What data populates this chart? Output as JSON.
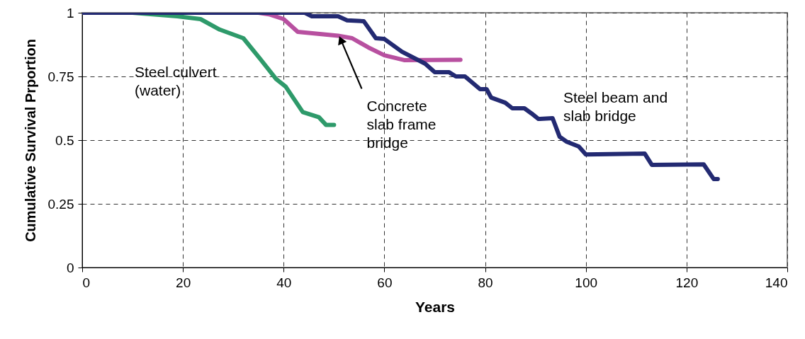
{
  "chart_data": {
    "type": "line",
    "xlabel": "Years",
    "ylabel": "Cumulative Survival Prportion",
    "xlim": [
      0,
      140
    ],
    "xticks": [
      0,
      20,
      40,
      60,
      80,
      100,
      120,
      140
    ],
    "ylim": [
      0,
      1
    ],
    "yticks": [
      0,
      0.25,
      0.5,
      0.75,
      1
    ],
    "grid": true,
    "marker": "none",
    "line_style": "solid",
    "series": [
      {
        "color": "#2e9a6a",
        "x": [
          0,
          10,
          18.9,
          23.5,
          27.3,
          32,
          35.3,
          38.5,
          40.4,
          43.8,
          47,
          48.4,
          50
        ],
        "values": [
          1,
          1,
          0.986,
          0.975,
          0.934,
          0.9,
          0.82,
          0.74,
          0.71,
          0.61,
          0.59,
          0.56,
          0.56
        ]
      },
      {
        "color": "#b850a0",
        "x": [
          0,
          35,
          37.1,
          40,
          42.8,
          50.8,
          53.6,
          56.8,
          60,
          63.9,
          75.1
        ],
        "values": [
          1,
          1,
          0.994,
          0.975,
          0.925,
          0.91,
          0.9,
          0.864,
          0.833,
          0.814,
          0.815
        ]
      },
      {
        "color": "#232a72",
        "x": [
          0,
          44.2,
          45.6,
          50.8,
          52.6,
          55.9,
          58.3,
          60,
          63.5,
          68.1,
          70,
          72.8,
          74.2,
          76,
          79,
          80.3,
          81.2,
          84,
          85.4,
          87.8,
          89.2,
          90.6,
          93.4,
          94.8,
          96.2,
          98.6,
          100,
          111.7,
          113.1,
          123.4,
          125.4,
          126.2
        ],
        "values": [
          1,
          1,
          0.986,
          0.986,
          0.97,
          0.967,
          0.9,
          0.897,
          0.847,
          0.8,
          0.767,
          0.767,
          0.75,
          0.75,
          0.7,
          0.7,
          0.667,
          0.647,
          0.625,
          0.625,
          0.605,
          0.583,
          0.586,
          0.513,
          0.494,
          0.475,
          0.444,
          0.447,
          0.403,
          0.405,
          0.347,
          0.347
        ]
      }
    ],
    "annotations": [
      "Steel culvert\n(water)",
      {
        "text": "Concrete\nslab frame\nbridge",
        "x": 51,
        "y": 0.91
      },
      "Steel beam and\nslab bridge"
    ]
  }
}
